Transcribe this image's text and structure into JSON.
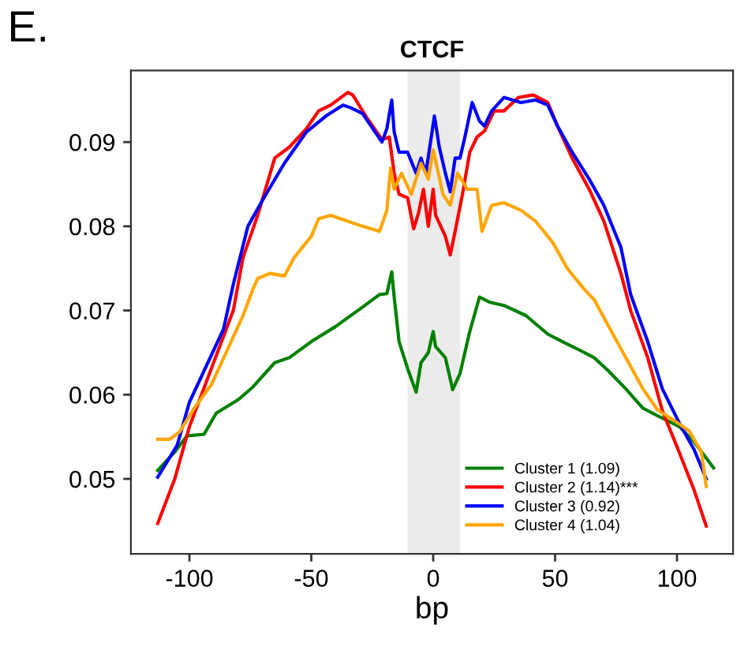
{
  "chart_data": {
    "type": "line",
    "title": "CTCF",
    "xlabel": "bp",
    "annotations": [
      "E."
    ],
    "xlim": [
      -124,
      123
    ],
    "ylim": [
      0.0411,
      0.0985
    ],
    "xticks": [
      -100,
      -50,
      0,
      50,
      100
    ],
    "yticks": [
      {
        "value": 0.05,
        "label": "0.05"
      },
      {
        "value": 0.06,
        "label": "0.06"
      },
      {
        "value": 0.07,
        "label": "0.07"
      },
      {
        "value": 0.08,
        "label": "0.08"
      },
      {
        "value": 0.09,
        "label": "0.09"
      }
    ],
    "bands": [
      {
        "axis": "x",
        "from": -10.5,
        "to": 11,
        "color": "#ebebeb"
      }
    ],
    "grid": false,
    "legend": "bottom right",
    "line_style": "solid",
    "marker": "none",
    "series": [
      {
        "name": "Cluster 1 (1.09)",
        "color": "#008000",
        "x": [
          -113,
          -106,
          -101,
          -94,
          -89,
          -80,
          -74,
          -65,
          -59,
          -50,
          -40,
          -29,
          -22,
          -19,
          -17,
          -16,
          -14,
          -10.5,
          -7,
          -5,
          -2,
          0,
          1,
          5,
          8,
          11,
          15,
          19,
          23,
          29,
          38,
          47,
          53,
          60,
          66,
          72,
          79,
          86,
          92,
          101,
          107,
          115
        ],
        "values": [
          0.051,
          0.0532,
          0.0551,
          0.0553,
          0.0578,
          0.0594,
          0.0609,
          0.0638,
          0.0644,
          0.0663,
          0.0681,
          0.0704,
          0.0719,
          0.072,
          0.0746,
          0.0716,
          0.0663,
          0.0631,
          0.0603,
          0.0638,
          0.065,
          0.0675,
          0.0657,
          0.0644,
          0.0606,
          0.0625,
          0.0675,
          0.0716,
          0.071,
          0.0706,
          0.0694,
          0.0672,
          0.0663,
          0.0653,
          0.0644,
          0.0628,
          0.0607,
          0.0584,
          0.0575,
          0.0562,
          0.0544,
          0.0513
        ]
      },
      {
        "name": "Cluster 2 (1.14)***",
        "color": "#ff0000",
        "x": [
          -113,
          -106,
          -100,
          -91,
          -82,
          -78,
          -72,
          -65,
          -59,
          -52,
          -47,
          -42,
          -35,
          -33,
          -27,
          -21,
          -18,
          -16,
          -14,
          -10.5,
          -8,
          -6,
          -4,
          -2,
          0,
          1,
          5,
          7,
          9,
          12,
          15,
          18,
          21,
          25,
          29,
          35,
          41,
          47,
          51,
          57,
          64,
          70,
          77,
          81,
          88,
          94,
          101,
          107,
          112
        ],
        "values": [
          0.0447,
          0.05,
          0.0562,
          0.0631,
          0.07,
          0.0763,
          0.0813,
          0.0881,
          0.0894,
          0.0916,
          0.0937,
          0.0944,
          0.0959,
          0.0956,
          0.0928,
          0.0903,
          0.0906,
          0.0863,
          0.0838,
          0.0834,
          0.0797,
          0.0816,
          0.0844,
          0.08,
          0.0844,
          0.0813,
          0.0788,
          0.0766,
          0.0794,
          0.0838,
          0.0888,
          0.0906,
          0.0913,
          0.0937,
          0.0937,
          0.0953,
          0.0956,
          0.0947,
          0.0919,
          0.0881,
          0.0844,
          0.0806,
          0.0744,
          0.07,
          0.0644,
          0.0581,
          0.0531,
          0.0487,
          0.0444
        ]
      },
      {
        "name": "Cluster 3 (0.92)",
        "color": "#0000ff",
        "x": [
          -113,
          -105,
          -100,
          -86,
          -82,
          -76,
          -70,
          -61,
          -52,
          -44,
          -37,
          -34,
          -29,
          -21,
          -19,
          -17,
          -16,
          -14,
          -10.5,
          -7,
          -5,
          -3,
          0.5,
          2.5,
          5,
          7,
          9,
          11,
          13,
          16,
          19,
          21,
          24,
          29,
          36,
          42,
          47,
          51,
          57,
          64,
          70,
          77,
          81,
          88,
          94,
          101,
          107,
          112
        ],
        "values": [
          0.0502,
          0.054,
          0.0591,
          0.0678,
          0.0731,
          0.08,
          0.0831,
          0.0875,
          0.0912,
          0.0931,
          0.0944,
          0.0941,
          0.0934,
          0.09,
          0.0916,
          0.095,
          0.0912,
          0.0888,
          0.0888,
          0.0863,
          0.0881,
          0.0863,
          0.0931,
          0.0894,
          0.0863,
          0.0841,
          0.0881,
          0.0881,
          0.0906,
          0.0947,
          0.0925,
          0.0919,
          0.0937,
          0.0953,
          0.0947,
          0.095,
          0.0944,
          0.0919,
          0.0888,
          0.0856,
          0.0825,
          0.0775,
          0.0719,
          0.0663,
          0.0607,
          0.0566,
          0.0535,
          0.05
        ]
      },
      {
        "name": "Cluster 4 (1.04)",
        "color": "#ffa500",
        "x": [
          -113,
          -108,
          -104,
          -98,
          -91,
          -84,
          -78,
          -74,
          -72,
          -67,
          -61,
          -57,
          -50,
          -47,
          -42,
          -35,
          -29,
          -22,
          -19,
          -17.5,
          -16,
          -13,
          -9,
          -5,
          -2,
          0,
          4,
          7,
          10,
          14,
          18,
          20,
          24,
          29,
          36,
          42,
          49,
          55,
          62,
          66,
          72,
          79,
          86,
          92,
          99,
          105,
          110,
          112
        ],
        "values": [
          0.0547,
          0.0547,
          0.0556,
          0.0584,
          0.0612,
          0.0656,
          0.0694,
          0.0725,
          0.0738,
          0.0744,
          0.0741,
          0.0763,
          0.0788,
          0.0809,
          0.0813,
          0.0806,
          0.08,
          0.0794,
          0.0819,
          0.0869,
          0.0844,
          0.0863,
          0.0838,
          0.0875,
          0.0856,
          0.0891,
          0.0838,
          0.0825,
          0.0863,
          0.0844,
          0.0844,
          0.0794,
          0.0825,
          0.0828,
          0.0819,
          0.0806,
          0.0781,
          0.075,
          0.0725,
          0.0713,
          0.0681,
          0.0644,
          0.0607,
          0.0582,
          0.0569,
          0.0557,
          0.0532,
          0.0491
        ]
      }
    ]
  }
}
